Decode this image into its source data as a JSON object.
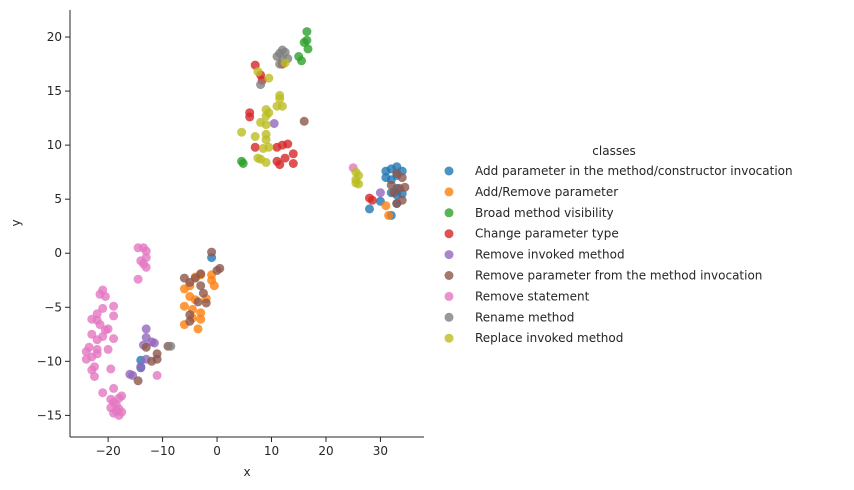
{
  "chart_data": {
    "type": "scatter",
    "title": "",
    "xlabel": "x",
    "ylabel": "y",
    "xlim": [
      -27,
      38
    ],
    "ylim": [
      -17,
      22.5
    ],
    "xticks": [
      -20,
      -10,
      0,
      10,
      20,
      30
    ],
    "yticks": [
      -15,
      -10,
      -5,
      0,
      5,
      10,
      15,
      20
    ],
    "xtick_labels": [
      "−20",
      "−10",
      "0",
      "10",
      "20",
      "30"
    ],
    "ytick_labels": [
      "−15",
      "−10",
      "−5",
      "0",
      "5",
      "10",
      "15",
      "20"
    ],
    "grid": false,
    "legend": {
      "title": "classes",
      "placement": "outside-right"
    },
    "series": [
      {
        "name": "Add parameter in the method/constructor invocation",
        "color": "#1f77b4",
        "points": [
          [
            31,
            7.6
          ],
          [
            32,
            7.8
          ],
          [
            33,
            8
          ],
          [
            34,
            7.6
          ],
          [
            33,
            7.2
          ],
          [
            32,
            6.8
          ],
          [
            31,
            7
          ],
          [
            33,
            6
          ],
          [
            34,
            5.5
          ],
          [
            33,
            5.4
          ],
          [
            32,
            5.6
          ],
          [
            33,
            4.6
          ],
          [
            32,
            3.5
          ],
          [
            28,
            4.1
          ],
          [
            30,
            4.8
          ],
          [
            -14,
            -9.9
          ],
          [
            -14,
            -10.6
          ],
          [
            -1,
            -0.4
          ]
        ]
      },
      {
        "name": "Add/Remove parameter",
        "color": "#ff7f0e",
        "points": [
          [
            -6,
            -3.3
          ],
          [
            -5,
            -3.0
          ],
          [
            -5,
            -4.0
          ],
          [
            -4,
            -4.3
          ],
          [
            -6,
            -4.9
          ],
          [
            -4.5,
            -5.2
          ],
          [
            -3,
            -5.5
          ],
          [
            -3,
            -6.1
          ],
          [
            -4.5,
            -6.0
          ],
          [
            -6,
            -6.6
          ],
          [
            -3.5,
            -7.0
          ],
          [
            -2,
            -4.2
          ],
          [
            -1,
            -2.0
          ],
          [
            -1,
            -2.5
          ],
          [
            -0.5,
            -3.0
          ],
          [
            -4,
            -2.2
          ],
          [
            -3,
            -2.0
          ],
          [
            31,
            4.4
          ],
          [
            31.5,
            3.5
          ]
        ]
      },
      {
        "name": "Broad method visibility",
        "color": "#2ca02c",
        "points": [
          [
            16.5,
            20.5
          ],
          [
            16.5,
            19.7
          ],
          [
            16,
            19.5
          ],
          [
            16.7,
            18.9
          ],
          [
            15,
            18.2
          ],
          [
            15.5,
            17.8
          ],
          [
            4.5,
            8.5
          ],
          [
            4.8,
            8.3
          ]
        ]
      },
      {
        "name": "Change parameter type",
        "color": "#d62728",
        "points": [
          [
            7,
            17.4
          ],
          [
            8,
            16.5
          ],
          [
            8.3,
            16.0
          ],
          [
            12,
            17.5
          ],
          [
            6,
            13.0
          ],
          [
            6,
            12.6
          ],
          [
            7,
            9.8
          ],
          [
            11,
            9.8
          ],
          [
            12,
            10
          ],
          [
            13,
            10.1
          ],
          [
            14,
            9.2
          ],
          [
            12.5,
            8.8
          ],
          [
            11,
            8.5
          ],
          [
            11.5,
            8.2
          ],
          [
            14,
            8.3
          ],
          [
            28,
            5.1
          ],
          [
            28.5,
            4.9
          ]
        ]
      },
      {
        "name": "Remove invoked method",
        "color": "#9467bd",
        "points": [
          [
            10.5,
            12
          ],
          [
            30,
            5.6
          ],
          [
            -13,
            -7
          ],
          [
            -13,
            -7.8
          ],
          [
            -13.5,
            -8.5
          ],
          [
            -12,
            -8.2
          ],
          [
            -11.5,
            -8.3
          ],
          [
            -13,
            -9.8
          ],
          [
            -14,
            -10.5
          ],
          [
            -15.5,
            -11.3
          ],
          [
            -16,
            -11.2
          ]
        ]
      },
      {
        "name": "Remove parameter from the method invocation",
        "color": "#8c564b",
        "points": [
          [
            16,
            12.2
          ],
          [
            33,
            7.4
          ],
          [
            34,
            7
          ],
          [
            34.5,
            6.1
          ],
          [
            33.5,
            6.0
          ],
          [
            32,
            6.3
          ],
          [
            32.5,
            5.6
          ],
          [
            34,
            4.9
          ],
          [
            33,
            4.6
          ],
          [
            -6,
            -2.3
          ],
          [
            -5,
            -2.7
          ],
          [
            -4,
            -2.3
          ],
          [
            -3,
            -1.9
          ],
          [
            -3,
            -3.0
          ],
          [
            -2.5,
            -3.7
          ],
          [
            -3.5,
            -4.5
          ],
          [
            -2,
            -4.6
          ],
          [
            -5,
            -5.7
          ],
          [
            -5,
            -6.3
          ],
          [
            -1,
            0.1
          ],
          [
            0,
            -1.6
          ],
          [
            0.5,
            -1.4
          ],
          [
            -13,
            -8.7
          ],
          [
            -11,
            -9.3
          ],
          [
            -11,
            -9.8
          ],
          [
            -12,
            -10
          ],
          [
            -14.5,
            -11.8
          ],
          [
            -9,
            -8.6
          ]
        ]
      },
      {
        "name": "Remove statement",
        "color": "#e377c2",
        "points": [
          [
            -14.5,
            0.5
          ],
          [
            -13.5,
            0.5
          ],
          [
            -13,
            0.2
          ],
          [
            -13,
            -0.4
          ],
          [
            -14,
            -0.7
          ],
          [
            -13.5,
            -1.0
          ],
          [
            -13,
            -1.3
          ],
          [
            -14.5,
            -2.4
          ],
          [
            -21,
            -3.4
          ],
          [
            -21.5,
            -3.8
          ],
          [
            -20.5,
            -4.0
          ],
          [
            -19,
            -4.9
          ],
          [
            -22,
            -5.6
          ],
          [
            -21,
            -5.1
          ],
          [
            -23,
            -6.1
          ],
          [
            -21.5,
            -6.6
          ],
          [
            -22,
            -6.2
          ],
          [
            -19,
            -5.8
          ],
          [
            -20.5,
            -7.1
          ],
          [
            -21,
            -7.7
          ],
          [
            -22,
            -8.0
          ],
          [
            -23,
            -7.5
          ],
          [
            -23.5,
            -8.7
          ],
          [
            -22,
            -8.9
          ],
          [
            -19,
            -7.9
          ],
          [
            -20,
            -7.0
          ],
          [
            -24,
            -9.1
          ],
          [
            -22,
            -9.3
          ],
          [
            -23,
            -9.6
          ],
          [
            -24,
            -9.8
          ],
          [
            -22.5,
            -10.5
          ],
          [
            -23,
            -10.8
          ],
          [
            -22.5,
            -11.4
          ],
          [
            -20,
            -8.9
          ],
          [
            -19.5,
            -10.7
          ],
          [
            -11,
            -11.3
          ],
          [
            -21,
            -12.9
          ],
          [
            -19,
            -12.5
          ],
          [
            -19.5,
            -13.5
          ],
          [
            -18,
            -13.4
          ],
          [
            -19,
            -13.8
          ],
          [
            -17.5,
            -13.2
          ],
          [
            -18.5,
            -14.0
          ],
          [
            -19.5,
            -14.3
          ],
          [
            -18,
            -14.4
          ],
          [
            -18.5,
            -14.6
          ],
          [
            -19,
            -14.8
          ],
          [
            -18,
            -15.0
          ],
          [
            -17.5,
            -14.7
          ],
          [
            25,
            7.9
          ]
        ]
      },
      {
        "name": "Rename method",
        "color": "#7f7f7f",
        "points": [
          [
            12,
            18.8
          ],
          [
            11.5,
            18.5
          ],
          [
            12.5,
            18.6
          ],
          [
            11,
            18.2
          ],
          [
            12,
            17.9
          ],
          [
            13,
            18
          ],
          [
            11.5,
            17.5
          ],
          [
            8,
            15.6
          ],
          [
            -8.5,
            -8.6
          ]
        ]
      },
      {
        "name": "Replace invoked method",
        "color": "#bcbd22",
        "points": [
          [
            7.5,
            16.8
          ],
          [
            9.5,
            16.2
          ],
          [
            12.5,
            17.6
          ],
          [
            11.5,
            14.6
          ],
          [
            11.5,
            14.3
          ],
          [
            11,
            13.6
          ],
          [
            12,
            13.6
          ],
          [
            9,
            13.3
          ],
          [
            9.5,
            13.0
          ],
          [
            9,
            12.7
          ],
          [
            8,
            12.1
          ],
          [
            9,
            11.9
          ],
          [
            4.5,
            11.2
          ],
          [
            7,
            10.8
          ],
          [
            9,
            11
          ],
          [
            9,
            10.5
          ],
          [
            8.5,
            9.7
          ],
          [
            9.5,
            9.8
          ],
          [
            7.5,
            8.8
          ],
          [
            8,
            8.7
          ],
          [
            9,
            8.4
          ],
          [
            25.5,
            7.5
          ],
          [
            26,
            7.2
          ],
          [
            25.5,
            6.8
          ],
          [
            25.5,
            6.5
          ],
          [
            26,
            6.4
          ]
        ]
      }
    ]
  }
}
